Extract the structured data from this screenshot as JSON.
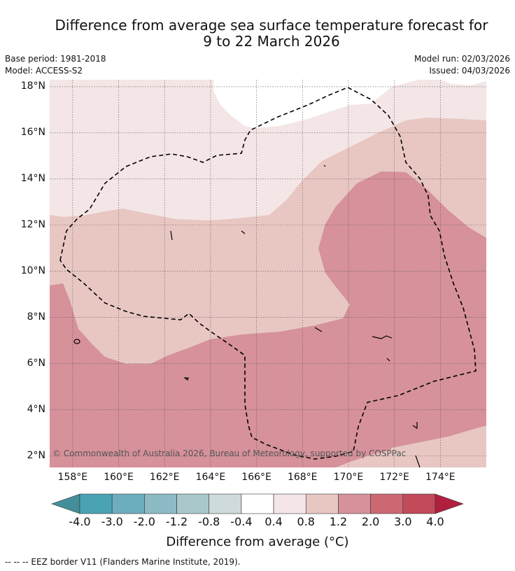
{
  "title": {
    "line1": "Difference from average sea surface temperature forecast for",
    "line2": "9 to 22 March 2026"
  },
  "meta": {
    "base_period": "Base period: 1981-2018",
    "model": "Model: ACCESS-S2",
    "model_run": "Model run: 02/03/2026",
    "issued": "Issued: 04/03/2026"
  },
  "axes": {
    "lat_labels": [
      "18°N",
      "16°N",
      "14°N",
      "12°N",
      "10°N",
      "8°N",
      "6°N",
      "4°N",
      "2°N"
    ],
    "lon_labels": [
      "158°E",
      "160°E",
      "162°E",
      "164°E",
      "166°E",
      "168°E",
      "170°E",
      "172°E",
      "174°E"
    ],
    "lat_range": [
      1.5,
      18.3
    ],
    "lon_range": [
      157.0,
      176.0
    ]
  },
  "credit": "© Commonwealth of Australia 2026, Bureau of Meteorology, supported by COSPPac",
  "colorbar": {
    "labels": [
      "-4.0",
      "-3.0",
      "-2.0",
      "-1.2",
      "-0.8",
      "-0.4",
      "0.4",
      "0.8",
      "1.2",
      "2.0",
      "3.0",
      "4.0"
    ],
    "colors": [
      "#4aa3b4",
      "#6caebd",
      "#8cbac5",
      "#a9c8cc",
      "#cfdadc",
      "#ffffff",
      "#f4e6e6",
      "#e8c7c3",
      "#d6919a",
      "#cc6872",
      "#c24a59"
    ],
    "under_color": "#448e99",
    "over_color": "#b01f3e",
    "title": "Difference from average (°C)"
  },
  "zones": {
    "z04_08": "#f4e6e6",
    "z08_12": "#e8c7c3",
    "z12_20": "#d6919a"
  },
  "legend_footer": "--  --  -- EEZ border V11 (Flanders Marine Institute, 2019)."
}
